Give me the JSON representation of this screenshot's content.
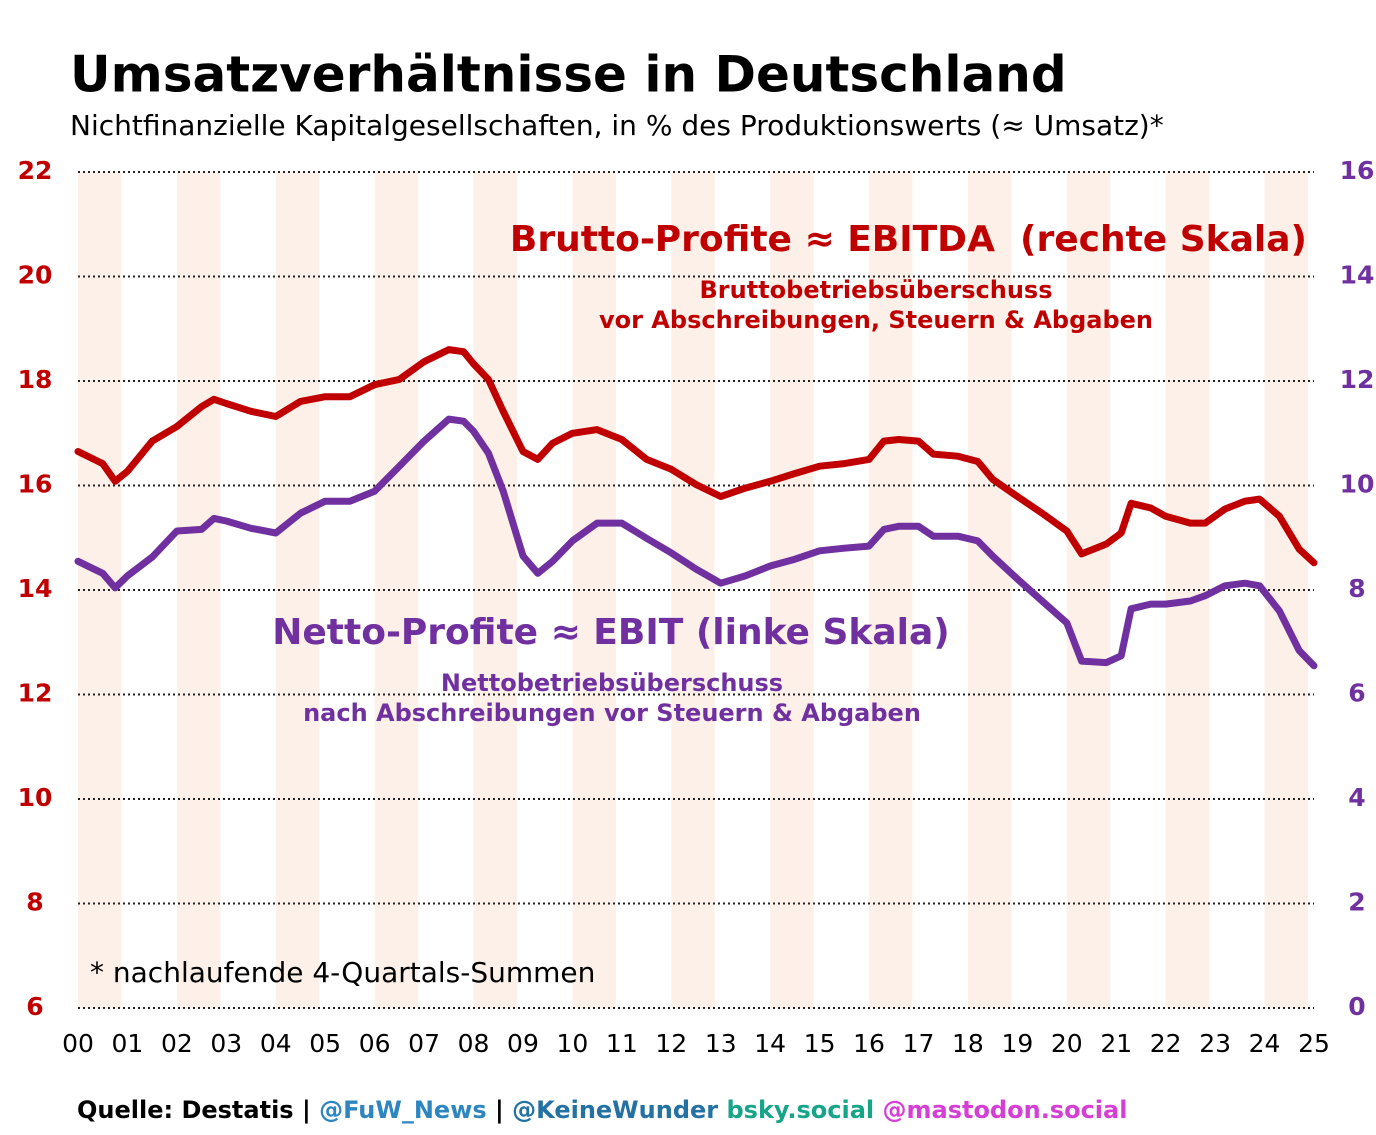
{
  "chart_data": {
    "type": "line",
    "title": "Umsatzverhältnisse in Deutschland",
    "subtitle": "Nichtfinanzielle Kapitalgesellschaften, in % des Produktionswerts (≈ Umsatz)*",
    "x": [
      0,
      0.5,
      0.75,
      1,
      1.5,
      2,
      2.5,
      2.75,
      3,
      3.5,
      4,
      4.5,
      5,
      5.5,
      6,
      6.5,
      7,
      7.5,
      7.8,
      8,
      8.3,
      8.6,
      9,
      9.3,
      9.6,
      10,
      10.5,
      11,
      11.5,
      12,
      12.5,
      13,
      13.5,
      14,
      14.5,
      15,
      15.5,
      16,
      16.3,
      16.6,
      17,
      17.3,
      17.8,
      18.2,
      18.5,
      19,
      19.5,
      20,
      20.3,
      20.8,
      21.1,
      21.3,
      21.7,
      22,
      22.5,
      22.8,
      23.2,
      23.6,
      23.9,
      24.3,
      24.7,
      25
    ],
    "series": [
      {
        "name": "Brutto-Profite ≈ EBITDA  (rechte Skala)",
        "color": "#c00000",
        "axis": "y2",
        "values": [
          10.65,
          10.42,
          10.08,
          10.27,
          10.85,
          11.13,
          11.51,
          11.65,
          11.57,
          11.42,
          11.32,
          11.61,
          11.7,
          11.7,
          11.93,
          12.03,
          12.37,
          12.6,
          12.56,
          12.33,
          12.03,
          11.42,
          10.65,
          10.5,
          10.81,
          11.0,
          11.07,
          10.88,
          10.5,
          10.31,
          10.02,
          9.79,
          9.95,
          10.08,
          10.23,
          10.37,
          10.42,
          10.5,
          10.85,
          10.88,
          10.85,
          10.6,
          10.56,
          10.46,
          10.12,
          9.79,
          9.47,
          9.13,
          8.69,
          8.88,
          9.09,
          9.66,
          9.57,
          9.41,
          9.28,
          9.28,
          9.55,
          9.7,
          9.74,
          9.41,
          8.78,
          8.52
        ]
      },
      {
        "name": "Netto-Profite ≈ EBIT (linke Skala)",
        "color": "#7030a0",
        "values": [
          14.55,
          14.32,
          14.04,
          14.27,
          14.63,
          15.13,
          15.16,
          15.37,
          15.32,
          15.18,
          15.09,
          15.47,
          15.7,
          15.7,
          15.89,
          16.37,
          16.85,
          17.27,
          17.23,
          17.04,
          16.62,
          15.89,
          14.65,
          14.32,
          14.55,
          14.94,
          15.28,
          15.28,
          14.99,
          14.71,
          14.4,
          14.13,
          14.27,
          14.46,
          14.59,
          14.75,
          14.8,
          14.84,
          15.16,
          15.22,
          15.22,
          15.03,
          15.03,
          14.94,
          14.65,
          14.21,
          13.79,
          13.37,
          12.64,
          12.61,
          12.74,
          13.64,
          13.73,
          13.73,
          13.79,
          13.89,
          14.08,
          14.13,
          14.08,
          13.6,
          12.84,
          12.55
        ]
      }
    ],
    "annotations": [
      "Bruttobetriebsüberschuss",
      "vor Abschreibungen, Steuern & Abgaben",
      "Nettobetriebsüberschuss",
      "nach Abschreibungen vor Steuern & Abgaben",
      "* nachlaufende 4-Quartals-Summen"
    ],
    "source": [
      {
        "text": "Quelle: Destatis |",
        "color": "#000000"
      },
      {
        "text": "@FuW_News",
        "color": "#2e86c1"
      },
      {
        "text": "|",
        "color": "#000000"
      },
      {
        "text": "@KeineWunder",
        "color": "#2471a3"
      },
      {
        "text": "bsky.social",
        "color": "#17a589"
      },
      {
        "text": "@mastodon.social",
        "color": "#d63fd6"
      }
    ],
    "xlim": [
      0,
      25
    ],
    "xticks": [
      {
        "value": 0,
        "label": "00"
      },
      {
        "value": 1,
        "label": "01"
      },
      {
        "value": 2,
        "label": "02"
      },
      {
        "value": 3,
        "label": "03"
      },
      {
        "value": 4,
        "label": "04"
      },
      {
        "value": 5,
        "label": "05"
      },
      {
        "value": 6,
        "label": "06"
      },
      {
        "value": 7,
        "label": "07"
      },
      {
        "value": 8,
        "label": "08"
      },
      {
        "value": 9,
        "label": "09"
      },
      10,
      11,
      12,
      13,
      14,
      15,
      16,
      17,
      18,
      19,
      20,
      21,
      22,
      23,
      24,
      25
    ],
    "ylim": [
      6,
      22
    ],
    "yticks": [
      6,
      8,
      10,
      12,
      14,
      16,
      18,
      20,
      22
    ],
    "ytick_color": "#c00000",
    "y2lim": [
      0,
      16
    ],
    "y2ticks": [
      0,
      2,
      4,
      6,
      8,
      10,
      12,
      14,
      16
    ],
    "y2tick_color": "#7030a0",
    "grid": true,
    "band_color": "#fdf0e8"
  }
}
